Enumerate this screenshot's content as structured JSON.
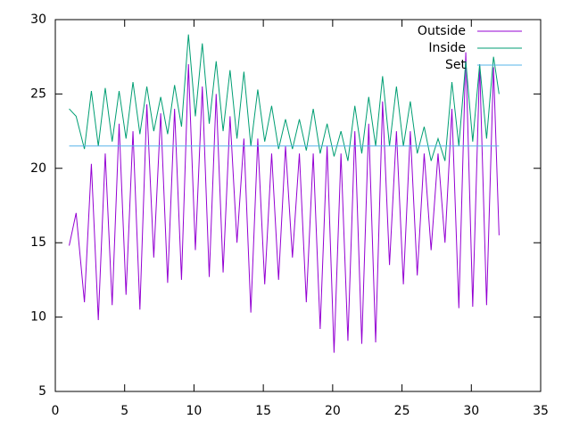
{
  "chart_data": {
    "type": "line",
    "x": [
      1,
      1.5,
      2.1,
      2.6,
      3.1,
      3.6,
      4.1,
      4.6,
      5.1,
      5.6,
      6.1,
      6.6,
      7.1,
      7.6,
      8.1,
      8.6,
      9.1,
      9.6,
      10.1,
      10.6,
      11.1,
      11.6,
      12.1,
      12.6,
      13.1,
      13.6,
      14.1,
      14.6,
      15.1,
      15.6,
      16.1,
      16.6,
      17.1,
      17.6,
      18.1,
      18.6,
      19.1,
      19.6,
      20.1,
      20.6,
      21.1,
      21.6,
      22.1,
      22.6,
      23.1,
      23.6,
      24.1,
      24.6,
      25.1,
      25.6,
      26.1,
      26.6,
      27.1,
      27.6,
      28.1,
      28.6,
      29.1,
      29.6,
      30.1,
      30.6,
      31.1,
      31.6,
      32
    ],
    "series": [
      {
        "name": "Outside",
        "color": "#9400d3",
        "values": [
          14.8,
          17,
          11,
          20.3,
          9.8,
          21,
          10.8,
          23,
          11.5,
          22.5,
          10.5,
          24.3,
          14,
          23.7,
          12.3,
          24,
          12.5,
          27,
          14.5,
          25.5,
          12.7,
          25,
          13,
          23.5,
          15,
          22,
          10.3,
          22,
          12.2,
          21,
          12.5,
          21.5,
          14,
          21,
          11,
          21,
          9.2,
          21.5,
          7.6,
          21,
          8.4,
          22.5,
          8.2,
          23,
          8.3,
          24.5,
          13.5,
          22.5,
          12.2,
          22.5,
          12.8,
          21,
          14.5,
          21,
          15,
          24,
          10.6,
          27.8,
          10.7,
          27,
          10.8,
          26.8,
          15.5
        ]
      },
      {
        "name": "Inside",
        "color": "#009e73",
        "values": [
          24,
          23.5,
          21.3,
          25.2,
          21.5,
          25.4,
          21.8,
          25.2,
          22,
          25.8,
          22.3,
          25.5,
          22.5,
          24.8,
          22.3,
          25.6,
          22.8,
          29,
          23.5,
          28.4,
          23,
          27.2,
          22.5,
          26.6,
          22,
          26.5,
          21.5,
          25.3,
          21.8,
          24.2,
          21.3,
          23.3,
          21.3,
          23.3,
          21.2,
          24,
          21,
          23,
          20.8,
          22.5,
          20.5,
          24.2,
          21,
          24.8,
          21.5,
          26.2,
          21.5,
          25.5,
          21.5,
          24.5,
          21,
          22.8,
          20.5,
          22,
          20.5,
          25.8,
          21.5,
          27.2,
          21.8,
          27,
          22,
          27.5,
          25
        ]
      },
      {
        "name": "Set",
        "color": "#56b4e9",
        "x": [
          1,
          32
        ],
        "values": [
          21.5,
          21.5
        ]
      }
    ],
    "xlim": [
      0,
      35
    ],
    "xticks": [
      0,
      5,
      10,
      15,
      20,
      25,
      30,
      35
    ],
    "ylim": [
      5,
      30
    ],
    "yticks": [
      5,
      10,
      15,
      20,
      25,
      30
    ],
    "legend": "top-right"
  }
}
